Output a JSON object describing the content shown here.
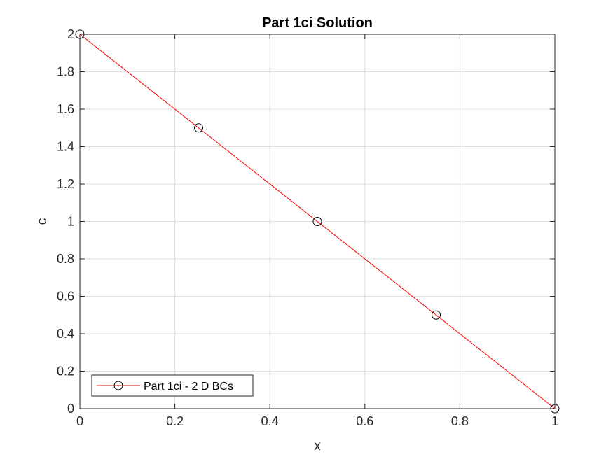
{
  "chart_data": {
    "type": "line",
    "title": "Part 1ci Solution",
    "xlabel": "x",
    "ylabel": "c",
    "xlim": [
      0,
      1
    ],
    "ylim": [
      0,
      2
    ],
    "xticks": [
      0,
      0.2,
      0.4,
      0.6,
      0.8,
      1
    ],
    "xtick_labels": [
      "0",
      "0.2",
      "0.4",
      "0.6",
      "0.8",
      "1"
    ],
    "yticks": [
      0,
      0.2,
      0.4,
      0.6,
      0.8,
      1,
      1.2,
      1.4,
      1.6,
      1.8,
      2
    ],
    "ytick_labels": [
      "0",
      "0.2",
      "0.4",
      "0.6",
      "0.8",
      "1",
      "1.2",
      "1.4",
      "1.6",
      "1.8",
      "2"
    ],
    "grid": true,
    "legend_position": "bottom-left",
    "series": [
      {
        "name": "Part 1ci - 2 D BCs",
        "color": "#ff0000",
        "marker": "circle",
        "marker_color": "#000000",
        "x": [
          0,
          0.25,
          0.5,
          0.75,
          1
        ],
        "y": [
          2,
          1.5,
          1,
          0.5,
          0
        ]
      }
    ]
  }
}
